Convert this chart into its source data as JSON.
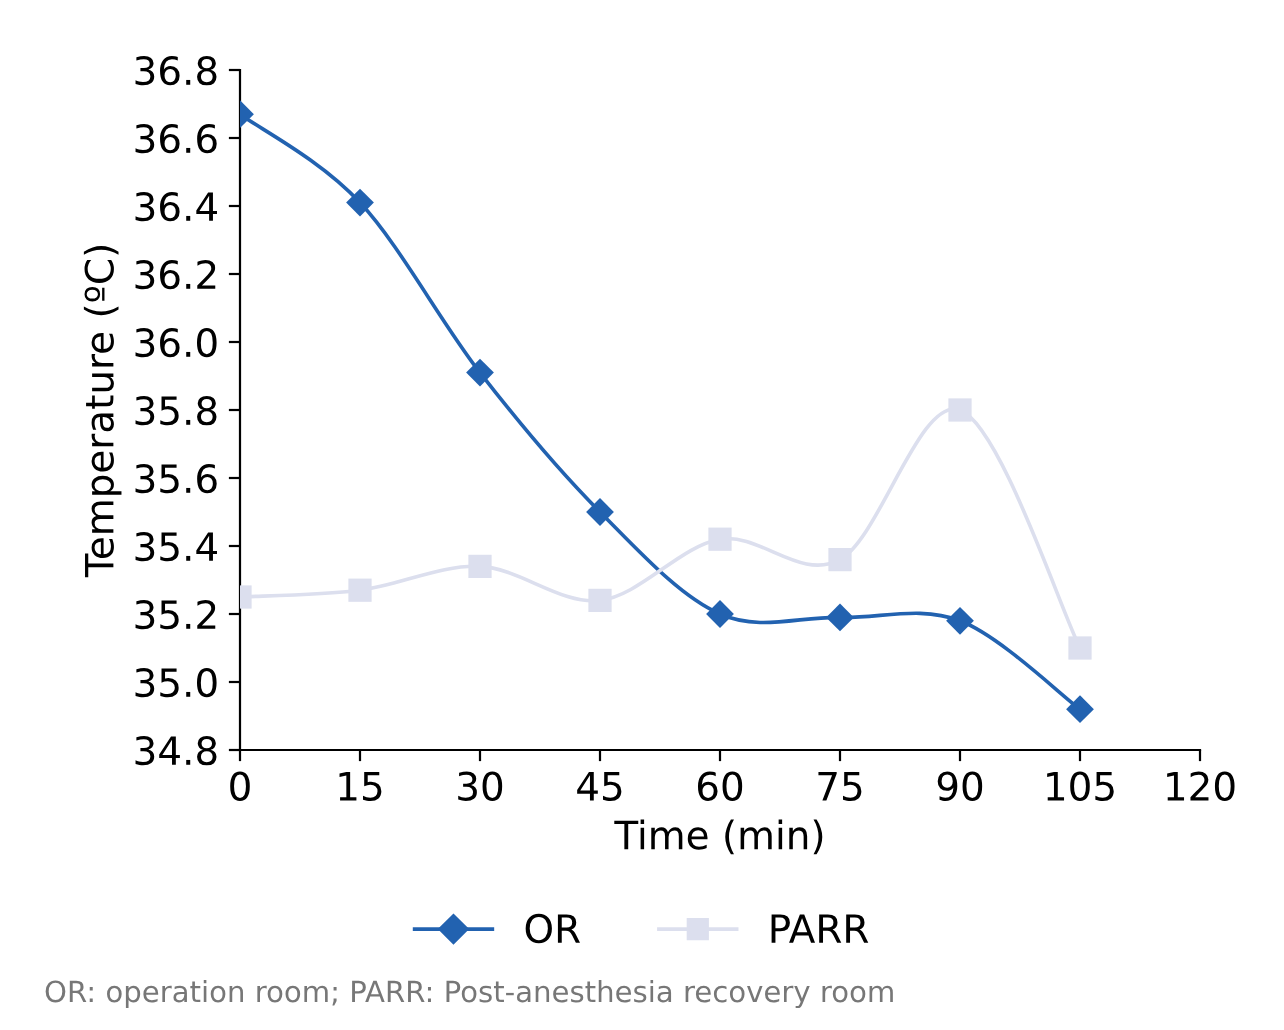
{
  "chart_data": {
    "type": "line",
    "xlabel": "Time (min)",
    "ylabel": "Temperature (ºC)",
    "x": [
      0,
      15,
      30,
      45,
      60,
      75,
      90,
      105
    ],
    "series": [
      {
        "name": "OR",
        "color": "#2262b0",
        "marker": "diamond",
        "values": [
          36.67,
          36.41,
          35.91,
          35.5,
          35.2,
          35.19,
          35.18,
          34.92
        ]
      },
      {
        "name": "PARR",
        "color": "#dcdfee",
        "marker": "square",
        "values": [
          35.25,
          35.27,
          35.34,
          35.24,
          35.42,
          35.36,
          35.8,
          35.1
        ]
      }
    ],
    "xlim": [
      0,
      120
    ],
    "xticks": [
      0,
      15,
      30,
      45,
      60,
      75,
      90,
      105,
      120
    ],
    "ylim": [
      34.8,
      36.8
    ],
    "yticks": [
      {
        "value": 34.8,
        "label": "34.8"
      },
      {
        "value": 35.0,
        "label": "35.0"
      },
      {
        "value": 35.2,
        "label": "35.2"
      },
      {
        "value": 35.4,
        "label": "35.4"
      },
      {
        "value": 35.6,
        "label": "35.6"
      },
      {
        "value": 35.8,
        "label": "35.8"
      },
      {
        "value": 36.0,
        "label": "36.0"
      },
      {
        "value": 36.2,
        "label": "36.2"
      },
      {
        "value": 36.4,
        "label": "36.4"
      },
      {
        "value": 36.6,
        "label": "36.6"
      },
      {
        "value": 36.8,
        "label": "36.8"
      }
    ],
    "grid": false,
    "legend": "bottom",
    "line_style": "solid",
    "annotations": [
      "OR: operation room; PARR: Post-anesthesia recovery room"
    ]
  }
}
